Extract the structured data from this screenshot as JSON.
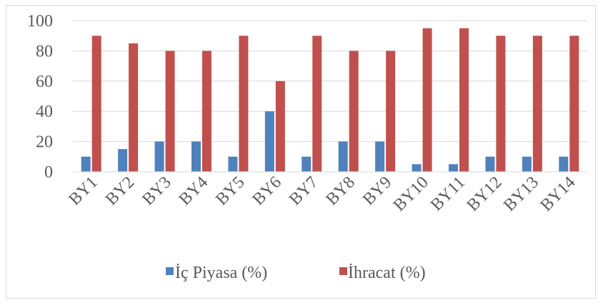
{
  "chart_data": {
    "type": "bar",
    "title": "",
    "xlabel": "",
    "ylabel": "",
    "categories": [
      "BY1",
      "BY2",
      "BY3",
      "BY4",
      "BY5",
      "BY6",
      "BY7",
      "BY8",
      "BY9",
      "BY10",
      "BY11",
      "BY12",
      "BY13",
      "BY14"
    ],
    "series": [
      {
        "name": "İç Piyasa (%)",
        "color": "#4f81bd",
        "values": [
          10,
          15,
          20,
          20,
          10,
          40,
          10,
          20,
          20,
          5,
          5,
          10,
          10,
          10
        ]
      },
      {
        "name": "İhracat (%)",
        "color": "#c0504d",
        "values": [
          90,
          85,
          80,
          80,
          90,
          60,
          90,
          80,
          80,
          95,
          95,
          90,
          90,
          90
        ]
      }
    ],
    "ylim": [
      0,
      100
    ],
    "yticks": [
      0,
      20,
      40,
      60,
      80,
      100
    ],
    "grid": true,
    "legend_position": "bottom"
  }
}
